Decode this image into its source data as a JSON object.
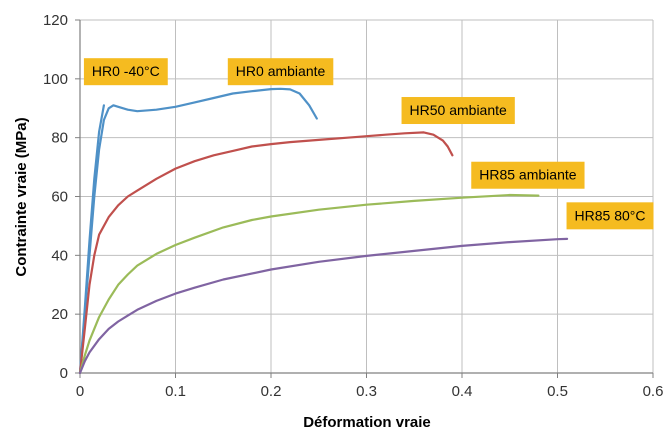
{
  "chart_data": {
    "type": "line",
    "title": "",
    "xlabel": "Déformation vraie",
    "ylabel": "Contrainte vraie (MPa)",
    "xlim": [
      0,
      0.6
    ],
    "ylim": [
      0,
      120
    ],
    "xticks": [
      0,
      0.1,
      0.2,
      0.3,
      0.4,
      0.5,
      0.6
    ],
    "xtick_labels": [
      "0",
      "0.1",
      "0.2",
      "0.3",
      "0.4",
      "0.5",
      "0.6"
    ],
    "yticks": [
      0,
      20,
      40,
      60,
      80,
      100,
      120
    ],
    "ytick_labels": [
      "0",
      "20",
      "40",
      "60",
      "80",
      "100",
      "120"
    ],
    "grid": true,
    "series": [
      {
        "name": "HR0 -40°C",
        "color": "#4f91c7",
        "x": [
          0,
          0.005,
          0.01,
          0.015,
          0.02,
          0.025
        ],
        "y": [
          0,
          22,
          45,
          66,
          82,
          91
        ]
      },
      {
        "name": "HR0 ambiante",
        "color": "#4f91c7",
        "x": [
          0,
          0.005,
          0.01,
          0.015,
          0.02,
          0.025,
          0.03,
          0.035,
          0.04,
          0.05,
          0.06,
          0.08,
          0.1,
          0.12,
          0.14,
          0.16,
          0.18,
          0.2,
          0.21,
          0.22,
          0.23,
          0.24,
          0.248
        ],
        "y": [
          0,
          20,
          40,
          60,
          76,
          86,
          90,
          91,
          90.5,
          89.5,
          89,
          89.5,
          90.5,
          92,
          93.5,
          95,
          95.8,
          96.5,
          96.6,
          96.4,
          95,
          91,
          86.5
        ]
      },
      {
        "name": "HR50 ambiante",
        "color": "#c0504d",
        "x": [
          0,
          0.005,
          0.01,
          0.015,
          0.02,
          0.03,
          0.04,
          0.05,
          0.06,
          0.08,
          0.1,
          0.12,
          0.14,
          0.16,
          0.18,
          0.2,
          0.22,
          0.24,
          0.26,
          0.28,
          0.3,
          0.32,
          0.34,
          0.36,
          0.37,
          0.38,
          0.385,
          0.39
        ],
        "y": [
          0,
          15,
          30,
          40,
          47,
          53,
          57,
          60,
          62,
          66,
          69.5,
          72,
          74,
          75.5,
          77,
          77.8,
          78.5,
          79,
          79.5,
          80,
          80.5,
          81,
          81.5,
          81.8,
          81,
          79,
          77,
          74
        ]
      },
      {
        "name": "HR85 ambiante",
        "color": "#9bbb59",
        "x": [
          0,
          0.005,
          0.01,
          0.02,
          0.03,
          0.04,
          0.05,
          0.06,
          0.08,
          0.1,
          0.12,
          0.15,
          0.18,
          0.2,
          0.25,
          0.3,
          0.35,
          0.4,
          0.45,
          0.48
        ],
        "y": [
          0,
          6,
          11,
          19,
          25,
          30,
          33.5,
          36.5,
          40.5,
          43.5,
          46,
          49.5,
          52,
          53.2,
          55.5,
          57.2,
          58.5,
          59.6,
          60.5,
          60.3
        ]
      },
      {
        "name": "HR85 80°C",
        "color": "#8064a2",
        "x": [
          0,
          0.005,
          0.01,
          0.02,
          0.03,
          0.04,
          0.05,
          0.06,
          0.08,
          0.1,
          0.12,
          0.15,
          0.2,
          0.25,
          0.3,
          0.35,
          0.4,
          0.45,
          0.5,
          0.51
        ],
        "y": [
          0,
          4,
          7,
          11.5,
          15,
          17.5,
          19.5,
          21.5,
          24.5,
          27,
          29,
          31.8,
          35.2,
          37.8,
          39.8,
          41.5,
          43.2,
          44.5,
          45.5,
          45.6
        ]
      }
    ],
    "annotations": [
      {
        "text": "HR0 -40°C",
        "at": [
          0.048,
          102.6
        ]
      },
      {
        "text": "HR0 ambiante",
        "at": [
          0.21,
          102.6
        ]
      },
      {
        "text": "HR50 ambiante",
        "at": [
          0.396,
          89.4
        ]
      },
      {
        "text": "HR85 ambiante",
        "at": [
          0.469,
          67.4
        ]
      },
      {
        "text": "HR85 80°C",
        "at": [
          0.555,
          53.6
        ]
      }
    ],
    "annotation_style": {
      "fill": "#f5bb20",
      "text_color": "#000000"
    },
    "grid_color": "#bfbfbf",
    "axis_color": "#808080"
  }
}
